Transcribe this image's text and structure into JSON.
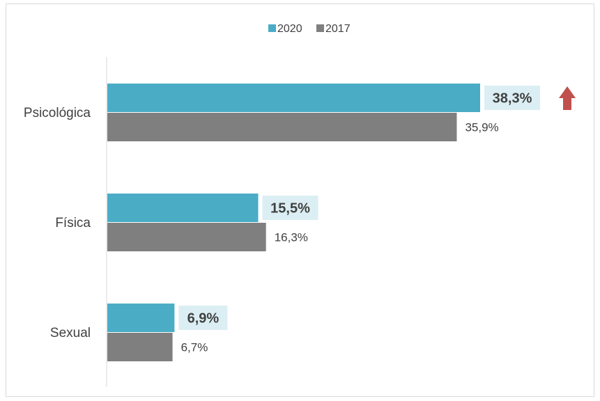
{
  "chart_data": {
    "type": "bar",
    "orientation": "horizontal",
    "categories": [
      "Psicológica",
      "Física",
      "Sexual"
    ],
    "series": [
      {
        "name": "2020",
        "values": [
          38.3,
          15.5,
          6.9
        ],
        "labels": [
          "38,3%",
          "15,5%",
          "6,9%"
        ],
        "color": "#4bacc6",
        "label_bg": "#dbeef3"
      },
      {
        "name": "2017",
        "values": [
          35.9,
          16.3,
          6.7
        ],
        "labels": [
          "35,9%",
          "16,3%",
          "6,7%"
        ],
        "color": "#7f7f7f"
      }
    ],
    "xlim": [
      0,
      40
    ],
    "grid": false,
    "legend": "top-center",
    "annotations": [
      {
        "type": "up-arrow-icon",
        "category": "Psicológica",
        "color": "#c0504d"
      }
    ]
  }
}
